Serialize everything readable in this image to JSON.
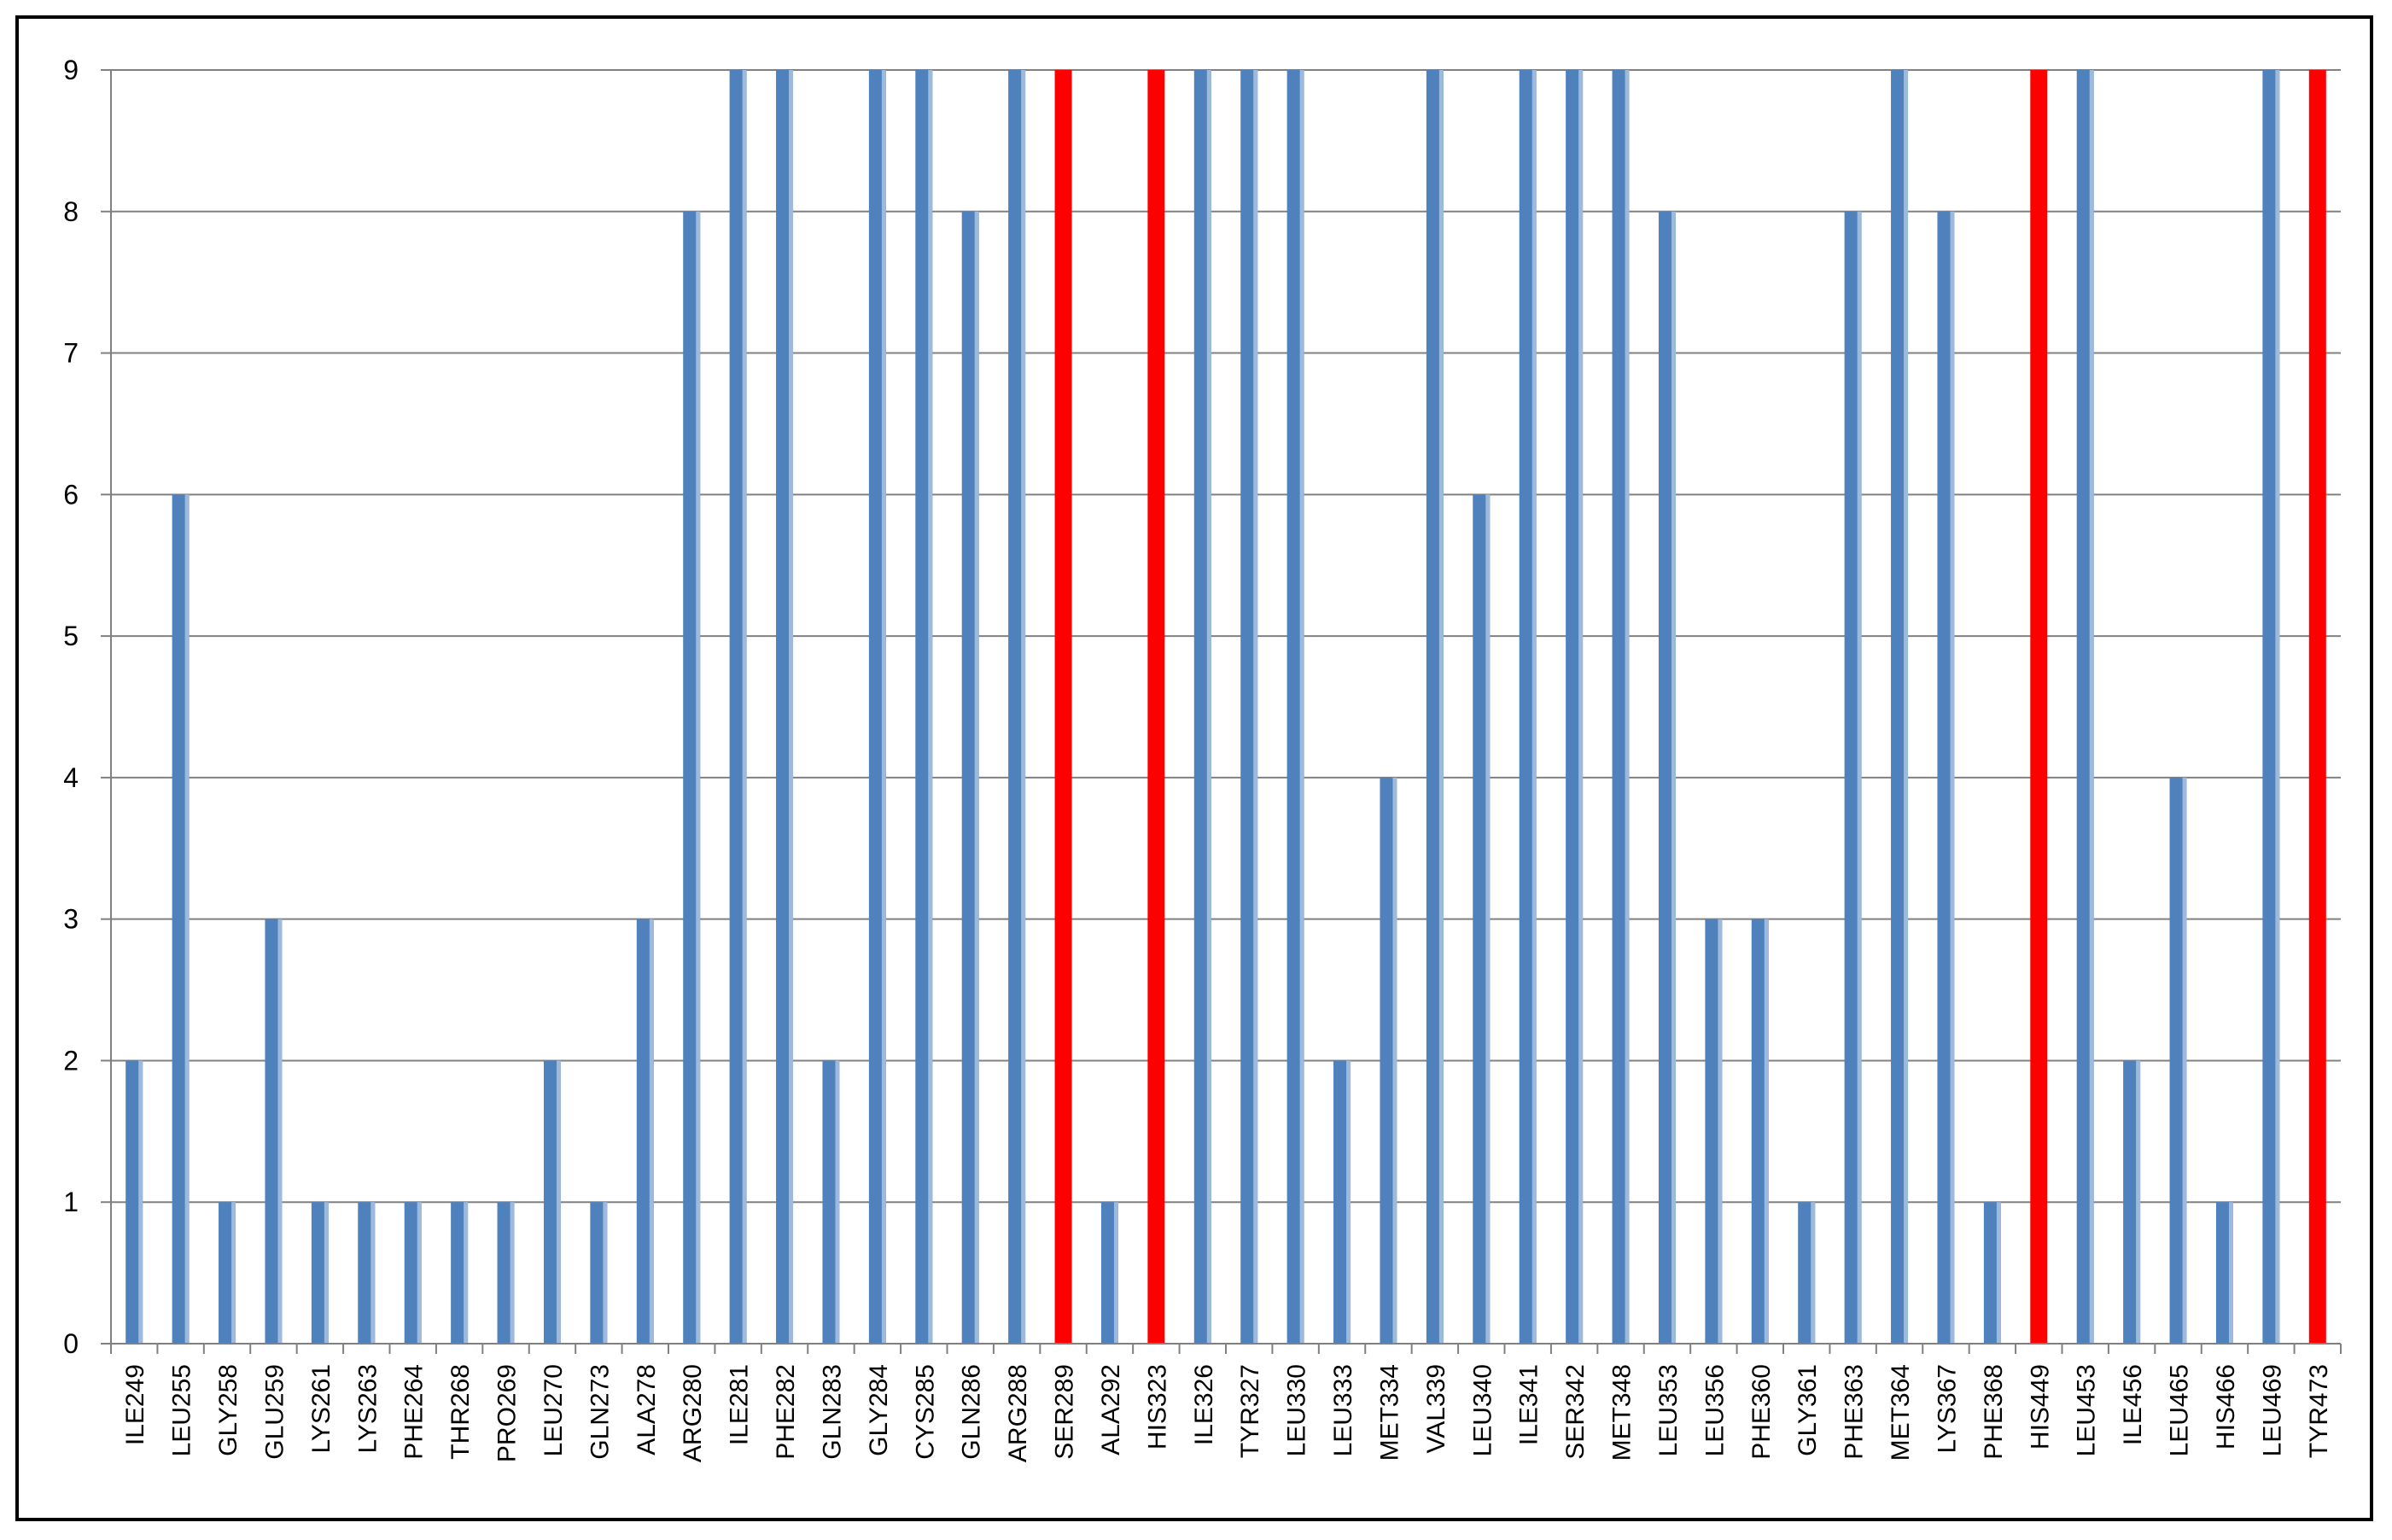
{
  "chart_data": {
    "type": "bar",
    "title": "",
    "xlabel": "",
    "ylabel": "",
    "ylim": [
      0,
      9
    ],
    "yticks": [
      0,
      1,
      2,
      3,
      4,
      5,
      6,
      7,
      8,
      9
    ],
    "grid": "horizontal",
    "legend": "none",
    "categories": [
      "ILE249",
      "LEU255",
      "GLY258",
      "GLU259",
      "LYS261",
      "LYS263",
      "PHE264",
      "THR268",
      "PRO269",
      "LEU270",
      "GLN273",
      "ALA278",
      "ARG280",
      "ILE281",
      "PHE282",
      "GLN283",
      "GLY284",
      "CYS285",
      "GLN286",
      "ARG288",
      "SER289",
      "ALA292",
      "HIS323",
      "ILE326",
      "TYR327",
      "LEU330",
      "LEU333",
      "MET334",
      "VAL339",
      "LEU340",
      "ILE341",
      "SER342",
      "MET348",
      "LEU353",
      "LEU356",
      "PHE360",
      "GLY361",
      "PHE363",
      "MET364",
      "LYS367",
      "PHE368",
      "HIS449",
      "LEU453",
      "ILE456",
      "LEU465",
      "HIS466",
      "LEU469",
      "TYR473"
    ],
    "values": [
      2,
      6,
      1,
      3,
      1,
      1,
      1,
      1,
      1,
      2,
      1,
      3,
      8,
      9,
      9,
      2,
      9,
      9,
      8,
      9,
      9,
      1,
      9,
      9,
      9,
      9,
      2,
      4,
      9,
      6,
      9,
      9,
      9,
      8,
      3,
      3,
      1,
      8,
      9,
      8,
      1,
      9,
      9,
      2,
      4,
      1,
      9,
      9
    ],
    "highlighted": [
      "SER289",
      "HIS323",
      "HIS449",
      "TYR473"
    ],
    "colors": {
      "bar": "#4f81bd",
      "highlight": "#ff0000",
      "grid": "#808080",
      "axis": "#808080"
    }
  }
}
